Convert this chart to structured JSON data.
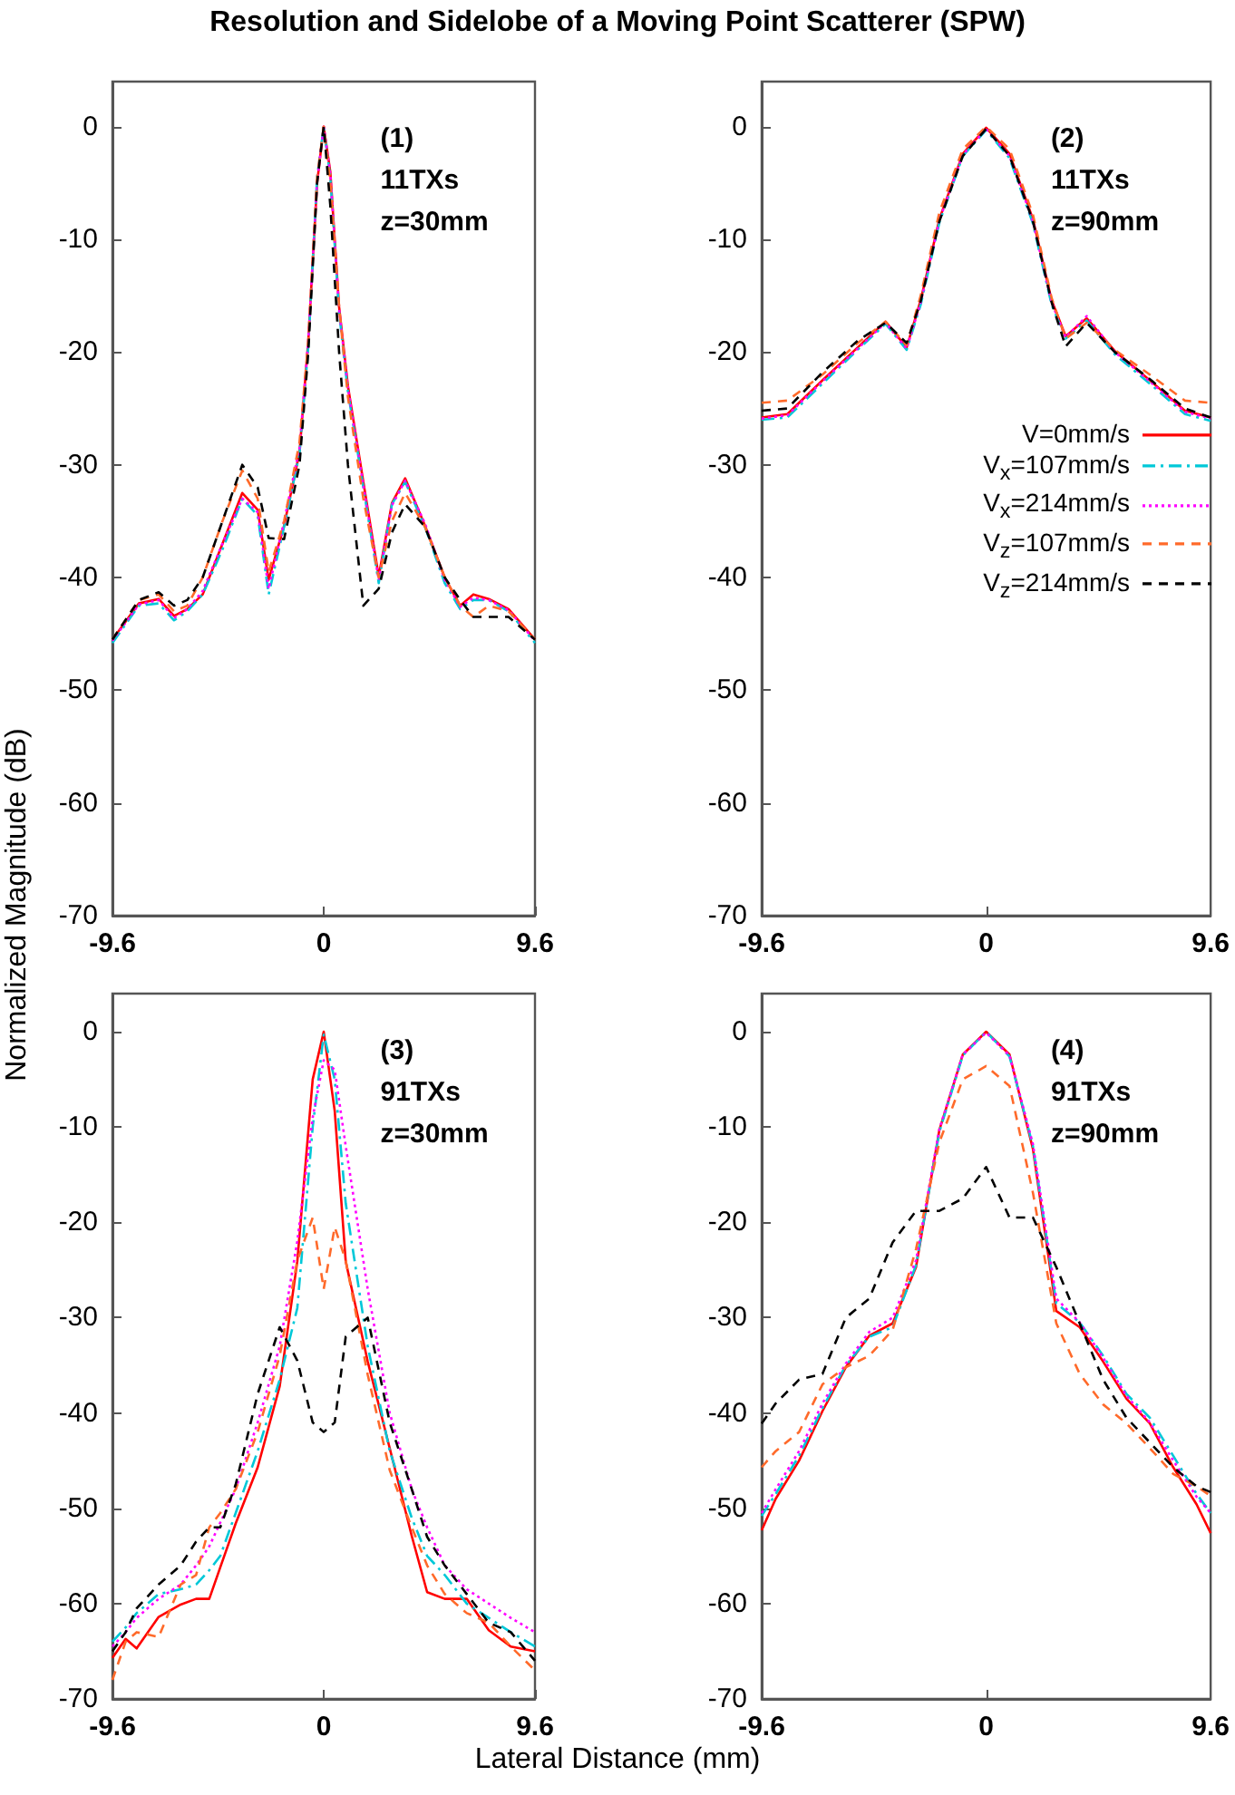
{
  "chart_data": [
    {
      "type": "line",
      "title": "Resolution and Sidelobe of a Moving Point Scatterer (SPW)",
      "xlabel": "Lateral Distance (mm)",
      "ylabel": "Normalized Magnitude (dB)",
      "annotations": [
        "(1)",
        "11TXs",
        "z=30mm"
      ],
      "marker": "none",
      "xlim": [
        -9.6,
        9.6
      ],
      "xticks": [
        -9.6,
        0,
        9.6
      ],
      "ylim": [
        -70,
        4
      ],
      "yticks": [
        0,
        -10,
        -20,
        -30,
        -40,
        -50,
        -60,
        -70
      ],
      "x": [
        -9.6,
        -8.4,
        -7.5,
        -6.8,
        -6.2,
        -5.5,
        -4.6,
        -3.7,
        -3.0,
        -2.5,
        -1.8,
        -1.1,
        -0.7,
        -0.3,
        0,
        0.3,
        0.7,
        1.1,
        1.8,
        2.5,
        3.1,
        3.7,
        4.6,
        5.5,
        6.2,
        6.8,
        7.5,
        8.4,
        9.6
      ],
      "series": [
        {
          "color": "#ff0000",
          "line_style": "solid",
          "values": [
            -45.5,
            -42.3,
            -41.9,
            -43.4,
            -42.8,
            -41.5,
            -37,
            -32.5,
            -34,
            -40.2,
            -35.4,
            -28.9,
            -19,
            -5,
            0,
            -4,
            -16,
            -23,
            -31.5,
            -39.9,
            -33.4,
            -31.2,
            -35.4,
            -40,
            -42.5,
            -41.5,
            -41.9,
            -42.8,
            -45.5
          ]
        },
        {
          "color": "#00c8d8",
          "line_style": "dashdot",
          "values": [
            -45.8,
            -42.5,
            -42.3,
            -43.8,
            -43,
            -41.5,
            -37.5,
            -33,
            -34.5,
            -41.5,
            -35.5,
            -29,
            -19.5,
            -4.5,
            0,
            -4.5,
            -16.5,
            -23.5,
            -32,
            -40.5,
            -33.5,
            -31.5,
            -35.5,
            -40.5,
            -42.8,
            -42,
            -42,
            -43,
            -45.8
          ]
        },
        {
          "color": "#ff00ff",
          "line_style": "dotted",
          "values": [
            -45.6,
            -42.4,
            -42,
            -43.6,
            -42.8,
            -41.2,
            -37,
            -33,
            -34.2,
            -41,
            -35,
            -28.5,
            -19,
            -4.8,
            0,
            -4.2,
            -16.2,
            -23.2,
            -31.8,
            -40.2,
            -33.6,
            -31.4,
            -35.2,
            -40.2,
            -42.6,
            -41.8,
            -42,
            -42.9,
            -45.6
          ]
        },
        {
          "color": "#ff6a2a",
          "line_style": "dashed",
          "values": [
            -45.5,
            -42,
            -41.5,
            -43,
            -42.5,
            -40,
            -35,
            -30.5,
            -33,
            -39.5,
            -35,
            -28,
            -19,
            -4.5,
            0,
            -5,
            -16,
            -24,
            -33,
            -40,
            -35,
            -32.5,
            -35.5,
            -40,
            -42.5,
            -43.5,
            -42.5,
            -43,
            -45.5
          ]
        },
        {
          "color": "#000000",
          "line_style": "dashed",
          "values": [
            -45.5,
            -42,
            -41.3,
            -42.5,
            -42,
            -40,
            -35,
            -30,
            -32,
            -36.5,
            -36.6,
            -30,
            -20,
            -5,
            0,
            -7,
            -20,
            -30,
            -42.5,
            -41,
            -36,
            -33.5,
            -35.5,
            -40,
            -42,
            -43.5,
            -43.5,
            -43.5,
            -45.5
          ]
        }
      ]
    },
    {
      "type": "line",
      "annotations": [
        "(2)",
        "11TXs",
        "z=90mm"
      ],
      "marker": "none",
      "legend": "right",
      "xlim": [
        -9.6,
        9.6
      ],
      "xticks": [
        -9.6,
        0,
        9.6
      ],
      "ylim": [
        -70,
        4
      ],
      "yticks": [
        0,
        -10,
        -20,
        -30,
        -40,
        -50,
        -60,
        -70
      ],
      "x": [
        -9.6,
        -8.5,
        -7,
        -5.5,
        -4.3,
        -3.4,
        -2.8,
        -2,
        -1,
        0,
        1,
        2,
        2.8,
        3.4,
        4.3,
        5.5,
        7,
        8.5,
        9.6
      ],
      "series": [
        {
          "name": "V=0mm/s",
          "color": "#ff0000",
          "line_style": "solid",
          "values": [
            -25.8,
            -25.5,
            -22.5,
            -19.6,
            -17.3,
            -19.6,
            -15.4,
            -8.2,
            -2.4,
            -0.1,
            -2.4,
            -8.2,
            -15.4,
            -18.6,
            -17,
            -19.9,
            -22.5,
            -25.2,
            -25.8
          ]
        },
        {
          "name": "V$_{x}$=107mm/s",
          "color": "#00c8d8",
          "line_style": "dashdot",
          "values": [
            -26,
            -25.8,
            -22.8,
            -19.8,
            -17.5,
            -19.8,
            -15.8,
            -8.5,
            -2.6,
            -0.3,
            -2.8,
            -8.6,
            -15.8,
            -18.8,
            -17.2,
            -20.2,
            -22.8,
            -25.5,
            -26.1
          ]
        },
        {
          "name": "V$_{x}$=214mm/s",
          "color": "#ff00ff",
          "line_style": "dotted",
          "values": [
            -25.9,
            -25.6,
            -22.6,
            -19.7,
            -17.4,
            -19.7,
            -15.6,
            -8.3,
            -2.5,
            -0.2,
            -2.6,
            -8.4,
            -15.6,
            -18.7,
            -16.8,
            -20,
            -22.6,
            -25.3,
            -25.9
          ]
        },
        {
          "name": "V$_{z}$=107mm/s",
          "color": "#ff6a2a",
          "line_style": "dashed",
          "values": [
            -24.5,
            -24.3,
            -22,
            -19.2,
            -17.3,
            -19.4,
            -15,
            -7.6,
            -2,
            0,
            -2,
            -7.8,
            -15.2,
            -18.8,
            -17.4,
            -19.8,
            -22,
            -24.3,
            -24.5
          ]
        },
        {
          "name": "V$_{z}$=214mm/s",
          "color": "#000000",
          "line_style": "dashed",
          "values": [
            -25.2,
            -25,
            -21.8,
            -19,
            -17.4,
            -19.2,
            -15.5,
            -8.4,
            -2.6,
            -0.2,
            -2.6,
            -8.4,
            -15.6,
            -19.5,
            -17.4,
            -20,
            -22.4,
            -25,
            -25.8
          ]
        }
      ]
    },
    {
      "type": "line",
      "annotations": [
        "(3)",
        "91TXs",
        "z=30mm"
      ],
      "marker": "none",
      "xlim": [
        -9.6,
        9.6
      ],
      "xticks": [
        -9.6,
        0,
        9.6
      ],
      "ylim": [
        -70,
        4
      ],
      "yticks": [
        0,
        -10,
        -20,
        -30,
        -40,
        -50,
        -60,
        -70
      ],
      "x": [
        -9.6,
        -9,
        -8.5,
        -7.5,
        -6.5,
        -5.8,
        -5.2,
        -4.7,
        -4,
        -3,
        -2,
        -1.2,
        -0.5,
        0,
        0.5,
        1,
        2,
        3,
        4,
        4.7,
        5.5,
        6.5,
        7.5,
        8.5,
        9.6
      ],
      "series": [
        {
          "color": "#ff0000",
          "line_style": "solid",
          "values": [
            -65.7,
            -63.7,
            -64.7,
            -61.4,
            -60.1,
            -59.5,
            -59.5,
            -56.2,
            -51.6,
            -45.7,
            -37.2,
            -24.1,
            -5,
            0,
            -8.3,
            -24.1,
            -34.6,
            -43.7,
            -52.9,
            -58.8,
            -59.5,
            -59.5,
            -62.8,
            -64.5,
            -65
          ]
        },
        {
          "color": "#00c8d8",
          "line_style": "dashdot",
          "values": [
            -64,
            -62.5,
            -61,
            -59,
            -58.5,
            -58,
            -56.5,
            -55,
            -50.5,
            -44,
            -36.5,
            -29,
            -10,
            -0.3,
            -5,
            -18,
            -33,
            -44,
            -51,
            -55,
            -57,
            -60,
            -61.5,
            -63,
            -64.5
          ]
        },
        {
          "color": "#ff00ff",
          "line_style": "dotted",
          "values": [
            -64.5,
            -63,
            -61.5,
            -59.5,
            -58,
            -56,
            -54,
            -51.5,
            -48,
            -41,
            -33,
            -22,
            -9,
            -3,
            -4,
            -12,
            -27,
            -40,
            -48,
            -52,
            -56,
            -58.5,
            -60,
            -61.5,
            -63
          ]
        },
        {
          "color": "#ff6a2a",
          "line_style": "dashed",
          "values": [
            -68,
            -64,
            -63,
            -63.5,
            -58,
            -57,
            -52,
            -50.5,
            -48,
            -42,
            -34,
            -24,
            -19.5,
            -27,
            -20.5,
            -24,
            -36,
            -46,
            -52,
            -56,
            -59,
            -61,
            -62,
            -64.5,
            -67
          ]
        },
        {
          "color": "#000000",
          "line_style": "dashed",
          "values": [
            -65,
            -63,
            -60.5,
            -58,
            -56,
            -53.5,
            -52,
            -52,
            -47.5,
            -38,
            -31,
            -34.5,
            -41,
            -42,
            -41,
            -32,
            -30,
            -41,
            -48,
            -53,
            -56,
            -59,
            -62,
            -63,
            -66
          ]
        }
      ]
    },
    {
      "type": "line",
      "annotations": [
        "(4)",
        "91TXs",
        "z=90mm"
      ],
      "marker": "none",
      "xlim": [
        -9.6,
        9.6
      ],
      "xticks": [
        -9.6,
        0,
        9.6
      ],
      "ylim": [
        -70,
        4
      ],
      "yticks": [
        0,
        -10,
        -20,
        -30,
        -40,
        -50,
        -60,
        -70
      ],
      "x": [
        -9.6,
        -9,
        -8,
        -7,
        -6,
        -5,
        -4,
        -3,
        -2,
        -1,
        0,
        1,
        2,
        3,
        4,
        5,
        6,
        7,
        8,
        9,
        9.6
      ],
      "series": [
        {
          "color": "#ff0000",
          "line_style": "solid",
          "values": [
            -52.3,
            -49,
            -45,
            -39.8,
            -35.2,
            -31.9,
            -30.6,
            -24.7,
            -10.3,
            -2.4,
            0,
            -2.4,
            -12.3,
            -29.3,
            -31,
            -34.6,
            -38.5,
            -41.1,
            -45.7,
            -49.6,
            -52.6
          ]
        },
        {
          "color": "#00c8d8",
          "line_style": "dashdot",
          "values": [
            -50.8,
            -48.5,
            -44.5,
            -39.5,
            -35,
            -32,
            -31,
            -24.5,
            -10.5,
            -2.5,
            0,
            -2.6,
            -12,
            -28.5,
            -30.5,
            -34,
            -38,
            -40.5,
            -44.5,
            -48.5,
            -50.5
          ]
        },
        {
          "color": "#ff00ff",
          "line_style": "dotted",
          "values": [
            -50.5,
            -48,
            -44,
            -39,
            -34.8,
            -31.5,
            -30,
            -24,
            -10.2,
            -2.4,
            -0.1,
            -2.5,
            -11.8,
            -28,
            -30.5,
            -34.2,
            -38.2,
            -41,
            -45,
            -48.8,
            -50.5
          ]
        },
        {
          "color": "#ff6a2a",
          "line_style": "dashed",
          "values": [
            -45.7,
            -44,
            -42,
            -37,
            -35.2,
            -34,
            -31.3,
            -22.8,
            -11.6,
            -5,
            -3.6,
            -5.7,
            -16.9,
            -30.6,
            -35.9,
            -39.1,
            -41.1,
            -43.7,
            -46.4,
            -47.7,
            -48.7
          ]
        },
        {
          "color": "#000000",
          "line_style": "dashed",
          "values": [
            -41.1,
            -39,
            -36.5,
            -35.9,
            -30,
            -28,
            -22.1,
            -18.8,
            -18.8,
            -17.5,
            -14.2,
            -19.5,
            -19.5,
            -24.7,
            -30.6,
            -36.5,
            -40.5,
            -43.1,
            -45.7,
            -47.7,
            -48.3
          ]
        }
      ]
    }
  ]
}
